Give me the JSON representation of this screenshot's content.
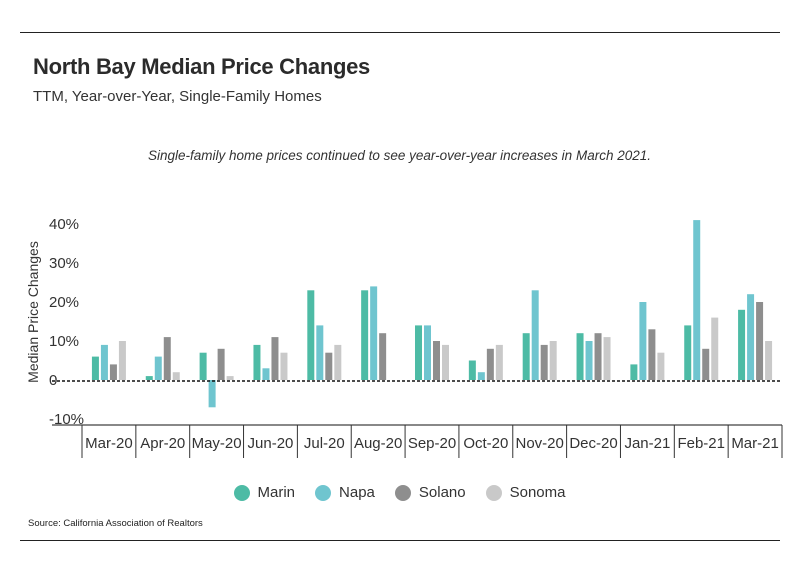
{
  "header": {
    "title": "North Bay Median Price Changes",
    "subtitle": "TTM, Year-over-Year, Single-Family Homes"
  },
  "source": "Source:  California Association of Realtors",
  "chart_data": {
    "type": "bar",
    "title": "North Bay Median Price Changes",
    "subtitle": "TTM, Year-over-Year, Single-Family Homes",
    "annotation": "Single-family home prices continued to see year-over-year increases in March 2021.",
    "ylabel": "Median Price Changes",
    "xlabel": "",
    "ylim": [
      -13,
      42
    ],
    "yticks": [
      -10,
      0,
      10,
      20,
      30,
      40
    ],
    "ytick_labels": [
      "-10%",
      "0",
      "10%",
      "20%",
      "30%",
      "40%"
    ],
    "zero_line": "dashed",
    "grid": false,
    "legend_position": "bottom",
    "categories": [
      "Mar-20",
      "Apr-20",
      "May-20",
      "Jun-20",
      "Jul-20",
      "Aug-20",
      "Sep-20",
      "Oct-20",
      "Nov-20",
      "Dec-20",
      "Jan-21",
      "Feb-21",
      "Mar-21"
    ],
    "series": [
      {
        "name": "Marin",
        "color": "#4dbba5",
        "values": [
          6,
          1,
          7,
          9,
          23,
          23,
          14,
          5,
          12,
          12,
          4,
          14,
          18
        ]
      },
      {
        "name": "Napa",
        "color": "#6fc5cf",
        "values": [
          9,
          6,
          -7,
          3,
          14,
          24,
          14,
          2,
          23,
          10,
          20,
          41,
          22
        ]
      },
      {
        "name": "Solano",
        "color": "#8e8e8e",
        "values": [
          4,
          11,
          8,
          11,
          7,
          12,
          10,
          8,
          9,
          12,
          13,
          8,
          20
        ]
      },
      {
        "name": "Sonoma",
        "color": "#c9c9c9",
        "values": [
          10,
          2,
          1,
          7,
          9,
          0,
          9,
          9,
          10,
          11,
          7,
          16,
          10
        ]
      }
    ]
  }
}
